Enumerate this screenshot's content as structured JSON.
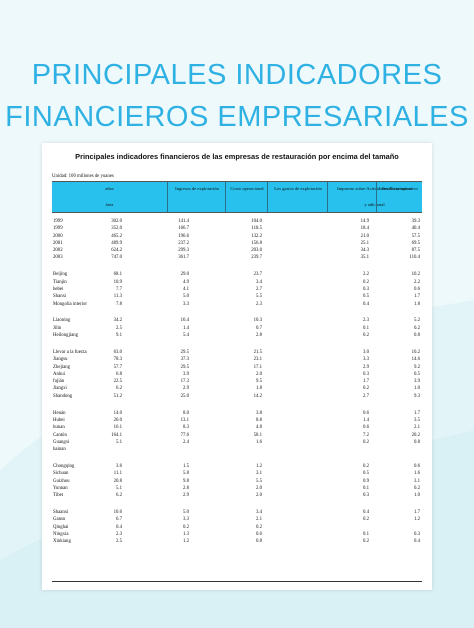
{
  "page": {
    "title_line1": "PRINCIPALES INDICADORES",
    "title_line2": "FINANCIEROS EMPRESARIALES"
  },
  "document": {
    "heading": "Principales indicadores financieros de las empresas de restauración por encima del tamaño",
    "unit": "Unidad: 100 millones de yuanes",
    "header": {
      "col0_top": "años",
      "col0_bottom": "área",
      "col1": "Ingresos de explotación",
      "col2": "Costo operacional",
      "col3": "Los gastos de explotación",
      "col4_top": "Impuesto sobre Actividades Económicas",
      "col4_bottom": "y adicional",
      "col5": "beneficio operativo"
    },
    "groups": [
      {
        "rows": [
          {
            "name": "1999",
            "v1": "302.0",
            "v2": "141.4",
            "v3": "104.0",
            "v4": "14.9",
            "v5": "39.3"
          },
          {
            "name": "1999",
            "v1": "352.0",
            "v2": "166.7",
            "v3": "118.5",
            "v4": "18.4",
            "v5": "40.4"
          },
          {
            "name": "2000",
            "v1": "465.2",
            "v2": "196.6",
            "v3": "132.2",
            "v4": "21.0",
            "v5": "57.5"
          },
          {
            "name": "2001",
            "v1": "489.9",
            "v2": "237.2",
            "v3": "156.8",
            "v4": "25.1",
            "v5": "69.5"
          },
          {
            "name": "2002",
            "v1": "624.2",
            "v2": "299.3",
            "v3": "203.0",
            "v4": "34.3",
            "v5": "87.5"
          },
          {
            "name": "2003",
            "v1": "747.0",
            "v2": "361.7",
            "v3": "239.7",
            "v4": "35.1",
            "v5": "110.4"
          }
        ]
      },
      {
        "rows": [
          {
            "name": "Beijing",
            "v1": "68.1",
            "v2": "29.0",
            "v3": "23.7",
            "v4": "2.2",
            "v5": "10.2"
          },
          {
            "name": "Tianjin",
            "v1": "10.9",
            "v2": "4.9",
            "v3": "3.4",
            "v4": "0.2",
            "v5": "2.2"
          },
          {
            "name": "hebei",
            "v1": "7.7",
            "v2": "4.1",
            "v3": "2.7",
            "v4": "0.3",
            "v5": "0.6"
          },
          {
            "name": "Shanxi",
            "v1": "11.3",
            "v2": "5.0",
            "v3": "5.5",
            "v4": "0.5",
            "v5": "1.7"
          },
          {
            "name": "Mongolia interior",
            "v1": "7.8",
            "v2": "3.3",
            "v3": "2.3",
            "v4": "0.4",
            "v5": "1.8"
          }
        ]
      },
      {
        "rows": [
          {
            "name": "Liaoning",
            "v1": "34.2",
            "v2": "16.4",
            "v3": "10.3",
            "v4": "2.3",
            "v5": "5.2"
          },
          {
            "name": "Jilin",
            "v1": "2.5",
            "v2": "1.4",
            "v3": "0.7",
            "v4": "0.1",
            "v5": "0.2"
          },
          {
            "name": "Heilongjiang",
            "v1": "9.1",
            "v2": "5.4",
            "v3": "2.8",
            "v4": "0.2",
            "v5": "0.8"
          }
        ]
      },
      {
        "rows": [
          {
            "name": "Llevar a la fuerza",
            "v1": "63.0",
            "v2": "29.5",
            "v3": "21.5",
            "v4": "3.0",
            "v5": "10.2"
          },
          {
            "name": "Jiangsu",
            "v1": "78.3",
            "v2": "37.3",
            "v3": "23.1",
            "v4": "3.3",
            "v5": "14.6"
          },
          {
            "name": "Zhejiang",
            "v1": "57.7",
            "v2": "29.5",
            "v3": "17.1",
            "v4": "2.9",
            "v5": "9.2"
          },
          {
            "name": "Anhui",
            "v1": "6.8",
            "v2": "3.9",
            "v3": "2.0",
            "v4": "0.3",
            "v5": "0.5"
          },
          {
            "name": "fujián",
            "v1": "22.5",
            "v2": "17.3",
            "v3": "9.5",
            "v4": "1.7",
            "v5": "3.9"
          },
          {
            "name": "Jiangxi",
            "v1": "6.2",
            "v2": "2.9",
            "v3": "1.8",
            "v4": "0.2",
            "v5": "1.0"
          },
          {
            "name": "Shandong",
            "v1": "51.2",
            "v2": "25.0",
            "v3": "14.2",
            "v4": "2.7",
            "v5": "9.3"
          }
        ]
      },
      {
        "rows": [
          {
            "name": "Henán",
            "v1": "14.0",
            "v2": "8.0",
            "v3": "3.8",
            "v4": "0.6",
            "v5": "1.7"
          },
          {
            "name": "Hubei",
            "v1": "26.0",
            "v2": "13.1",
            "v3": "8.8",
            "v4": "1.4",
            "v5": "3.5"
          },
          {
            "name": "hunan",
            "v1": "16.1",
            "v2": "8.3",
            "v3": "4.8",
            "v4": "0.6",
            "v5": "2.1"
          },
          {
            "name": "Cantón",
            "v1": "164.1",
            "v2": "77.6",
            "v3": "58.1",
            "v4": "7.2",
            "v5": "20.2"
          },
          {
            "name": "Guangxi",
            "v1": "5.1",
            "v2": "2.4",
            "v3": "1.6",
            "v4": "0.2",
            "v5": "0.8"
          },
          {
            "name": "hainan",
            "v1": "",
            "v2": "",
            "v3": "",
            "v4": "",
            "v5": ""
          }
        ]
      },
      {
        "rows": [
          {
            "name": "Chongqing",
            "v1": "3.6",
            "v2": "1.5",
            "v3": "1.2",
            "v4": "0.2",
            "v5": "0.6"
          },
          {
            "name": "Sichuan",
            "v1": "11.1",
            "v2": "5.8",
            "v3": "3.1",
            "v4": "0.5",
            "v5": "1.6"
          },
          {
            "name": "Guizhou",
            "v1": "20.8",
            "v2": "9.8",
            "v3": "5.5",
            "v4": "0.9",
            "v5": "3.1"
          },
          {
            "name": "Yunnan",
            "v1": "5.1",
            "v2": "2.8",
            "v3": "2.0",
            "v4": "0.1",
            "v5": "0.2"
          },
          {
            "name": "Tíbet",
            "v1": "6.2",
            "v2": "2.9",
            "v3": "2.0",
            "v4": "0.3",
            "v5": "1.0"
          }
        ]
      },
      {
        "rows": [
          {
            "name": "Shaanxi",
            "v1": "10.6",
            "v2": "5.0",
            "v3": "3.4",
            "v4": "0.4",
            "v5": "1.7"
          },
          {
            "name": "Gansu",
            "v1": "6.7",
            "v2": "3.3",
            "v3": "2.1",
            "v4": "0.2",
            "v5": "1.2"
          },
          {
            "name": "Qinghai",
            "v1": "0.4",
            "v2": "0.2",
            "v3": "0.2",
            "v4": "",
            "v5": ""
          },
          {
            "name": "Ningxia",
            "v1": "2.3",
            "v2": "1.3",
            "v3": "0.6",
            "v4": "0.1",
            "v5": "0.3"
          },
          {
            "name": "Xinkiang",
            "v1": "2.5",
            "v2": "1.2",
            "v3": "0.8",
            "v4": "0.2",
            "v5": "0.4"
          }
        ]
      }
    ]
  },
  "colors": {
    "title": "#2fb1e3",
    "header_fill": "#28c0ec",
    "background": "#eef9fb"
  }
}
